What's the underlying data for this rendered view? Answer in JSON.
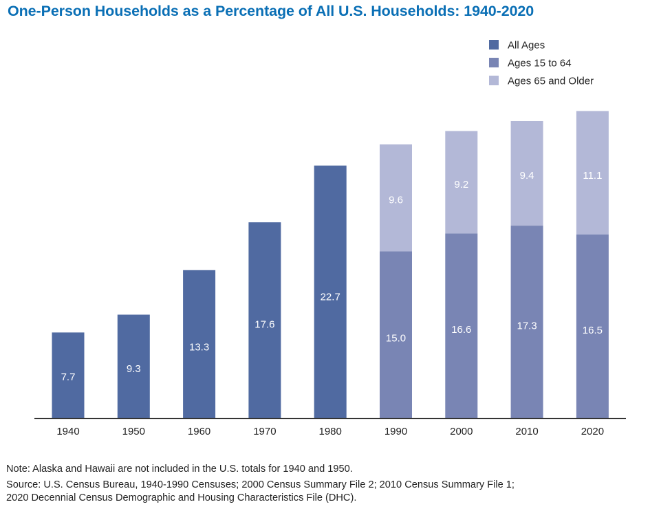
{
  "chart_data": {
    "type": "bar",
    "stacked": true,
    "title": "One-Person Households as a Percentage of All U.S. Households: 1940-2020",
    "xlabel": "",
    "ylabel": "",
    "ylim": [
      0,
      28.8
    ],
    "grid": false,
    "legend_position": "top-right",
    "categories": [
      "1940",
      "1950",
      "1960",
      "1970",
      "1980",
      "1990",
      "2000",
      "2010",
      "2020"
    ],
    "series": [
      {
        "name": "All Ages",
        "color": "#506aa1",
        "values": [
          7.7,
          9.3,
          13.3,
          17.6,
          22.7,
          null,
          null,
          null,
          null
        ]
      },
      {
        "name": "Ages 15 to 64",
        "color": "#7985b4",
        "values": [
          null,
          null,
          null,
          null,
          null,
          15.0,
          16.6,
          17.3,
          16.5
        ]
      },
      {
        "name": "Ages 65 and Older",
        "color": "#b3b8d7",
        "values": [
          null,
          null,
          null,
          null,
          null,
          9.6,
          9.2,
          9.4,
          11.1
        ]
      }
    ],
    "data_labels": [
      [
        "7.7",
        "9.3",
        "13.3",
        "17.6",
        "22.7",
        "",
        "",
        "",
        ""
      ],
      [
        "",
        "",
        "",
        "",
        "",
        "15.0",
        "16.6",
        "17.3",
        "16.5"
      ],
      [
        "",
        "",
        "",
        "",
        "",
        "9.6",
        "9.2",
        "9.4",
        "11.1"
      ]
    ]
  },
  "notes": {
    "note": "Note: Alaska and Hawaii are not included in the U.S. totals for 1940 and 1950.",
    "source_line1": "Source: U.S. Census Bureau, 1940-1990 Censuses; 2000 Census Summary File 2; 2010 Census Summary File 1;",
    "source_line2": "2020 Decennial Census Demographic and Housing Characteristics File (DHC)."
  },
  "colors": {
    "title": "#0a6fb5",
    "axis": "#333333",
    "label_on_bar": "#ffffff"
  }
}
